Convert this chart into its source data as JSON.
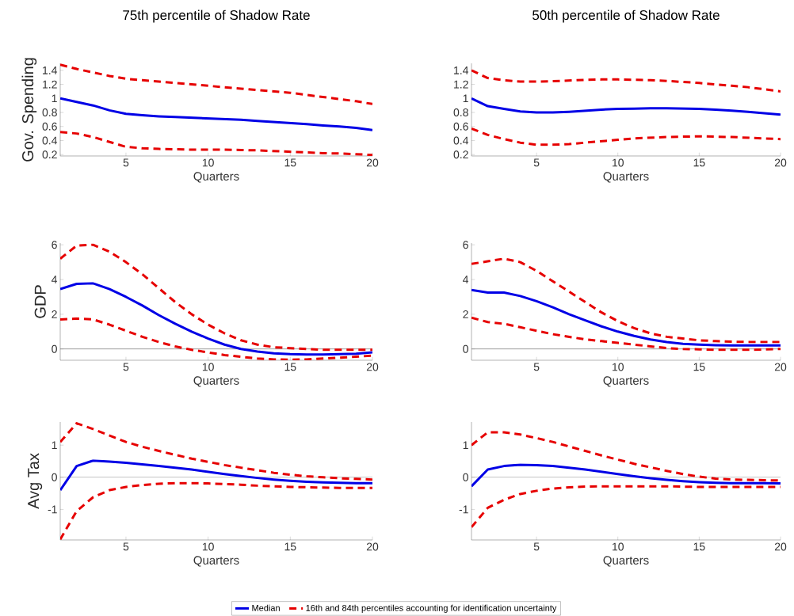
{
  "chart_data": [
    {
      "type": "line",
      "title": "75th percentile of Shadow Rate",
      "xlabel": "Quarters",
      "ylabel": "Gov. Spending",
      "x": [
        1,
        2,
        3,
        4,
        5,
        6,
        7,
        8,
        9,
        10,
        11,
        12,
        13,
        14,
        15,
        16,
        17,
        18,
        19,
        20
      ],
      "xlim": [
        1,
        20
      ],
      "xticks": [
        5,
        10,
        15,
        20
      ],
      "ylim": [
        0.18,
        1.5
      ],
      "yticks": [
        0.2,
        0.4,
        0.6,
        0.8,
        1,
        1.2,
        1.4
      ],
      "series": [
        {
          "color": "#0000e6",
          "line_style": "solid",
          "values": [
            1.0,
            0.95,
            0.9,
            0.83,
            0.78,
            0.76,
            0.745,
            0.735,
            0.725,
            0.715,
            0.705,
            0.695,
            0.68,
            0.665,
            0.65,
            0.635,
            0.615,
            0.6,
            0.58,
            0.55
          ]
        },
        {
          "color": "#e60000",
          "line_style": "dashed",
          "values": [
            1.48,
            1.42,
            1.37,
            1.32,
            1.28,
            1.26,
            1.24,
            1.22,
            1.2,
            1.18,
            1.16,
            1.14,
            1.12,
            1.1,
            1.08,
            1.05,
            1.02,
            0.99,
            0.96,
            0.92
          ]
        },
        {
          "color": "#e60000",
          "line_style": "dashed",
          "values": [
            0.52,
            0.5,
            0.45,
            0.38,
            0.31,
            0.29,
            0.28,
            0.275,
            0.27,
            0.27,
            0.27,
            0.265,
            0.26,
            0.25,
            0.24,
            0.23,
            0.22,
            0.215,
            0.205,
            0.195
          ]
        }
      ]
    },
    {
      "type": "line",
      "title": "50th percentile of Shadow Rate",
      "xlabel": "Quarters",
      "x": [
        1,
        2,
        3,
        4,
        5,
        6,
        7,
        8,
        9,
        10,
        11,
        12,
        13,
        14,
        15,
        16,
        17,
        18,
        19,
        20
      ],
      "xlim": [
        1,
        20
      ],
      "xticks": [
        5,
        10,
        15,
        20
      ],
      "ylim": [
        0.18,
        1.5
      ],
      "yticks": [
        0.2,
        0.4,
        0.6,
        0.8,
        1,
        1.2,
        1.4
      ],
      "series": [
        {
          "color": "#0000e6",
          "line_style": "solid",
          "values": [
            1.0,
            0.89,
            0.85,
            0.815,
            0.8,
            0.8,
            0.81,
            0.825,
            0.84,
            0.85,
            0.855,
            0.86,
            0.86,
            0.855,
            0.85,
            0.84,
            0.825,
            0.81,
            0.79,
            0.77
          ]
        },
        {
          "color": "#e60000",
          "line_style": "dashed",
          "values": [
            1.4,
            1.29,
            1.26,
            1.24,
            1.24,
            1.245,
            1.255,
            1.265,
            1.27,
            1.27,
            1.265,
            1.26,
            1.25,
            1.235,
            1.22,
            1.2,
            1.18,
            1.16,
            1.13,
            1.1
          ]
        },
        {
          "color": "#e60000",
          "line_style": "dashed",
          "values": [
            0.57,
            0.48,
            0.42,
            0.37,
            0.34,
            0.34,
            0.35,
            0.37,
            0.39,
            0.41,
            0.43,
            0.44,
            0.45,
            0.455,
            0.46,
            0.455,
            0.45,
            0.44,
            0.43,
            0.42
          ]
        }
      ]
    },
    {
      "type": "line",
      "xlabel": "Quarters",
      "ylabel": "GDP",
      "x": [
        1,
        2,
        3,
        4,
        5,
        6,
        7,
        8,
        9,
        10,
        11,
        12,
        13,
        14,
        15,
        16,
        17,
        18,
        19,
        20
      ],
      "xlim": [
        1,
        20
      ],
      "xticks": [
        5,
        10,
        15,
        20
      ],
      "ylim": [
        -0.65,
        6.1
      ],
      "yticks": [
        0,
        2,
        4,
        6
      ],
      "ref_lines": [
        {
          "axis": "y",
          "value": 0,
          "color": "#808080"
        }
      ],
      "series": [
        {
          "color": "#0000e6",
          "line_style": "solid",
          "values": [
            3.45,
            3.75,
            3.78,
            3.45,
            3.0,
            2.5,
            1.95,
            1.45,
            1.0,
            0.6,
            0.25,
            0.0,
            -0.15,
            -0.25,
            -0.3,
            -0.32,
            -0.32,
            -0.3,
            -0.27,
            -0.2
          ]
        },
        {
          "color": "#e60000",
          "line_style": "dashed",
          "values": [
            5.2,
            5.95,
            6.0,
            5.6,
            5.0,
            4.3,
            3.5,
            2.7,
            2.0,
            1.4,
            0.9,
            0.5,
            0.25,
            0.1,
            0.05,
            0.0,
            -0.05,
            -0.05,
            -0.05,
            -0.05
          ]
        },
        {
          "color": "#e60000",
          "line_style": "dashed",
          "values": [
            1.7,
            1.75,
            1.7,
            1.4,
            1.05,
            0.7,
            0.4,
            0.15,
            -0.05,
            -0.2,
            -0.35,
            -0.45,
            -0.55,
            -0.6,
            -0.62,
            -0.6,
            -0.55,
            -0.5,
            -0.45,
            -0.38
          ]
        }
      ]
    },
    {
      "type": "line",
      "xlabel": "Quarters",
      "x": [
        1,
        2,
        3,
        4,
        5,
        6,
        7,
        8,
        9,
        10,
        11,
        12,
        13,
        14,
        15,
        16,
        17,
        18,
        19,
        20
      ],
      "xlim": [
        1,
        20
      ],
      "xticks": [
        5,
        10,
        15,
        20
      ],
      "ylim": [
        -0.65,
        6.1
      ],
      "yticks": [
        0,
        2,
        4,
        6
      ],
      "ref_lines": [
        {
          "axis": "y",
          "value": 0,
          "color": "#808080"
        }
      ],
      "series": [
        {
          "color": "#0000e6",
          "line_style": "solid",
          "values": [
            3.4,
            3.25,
            3.25,
            3.05,
            2.75,
            2.4,
            2.0,
            1.65,
            1.3,
            1.0,
            0.75,
            0.55,
            0.4,
            0.3,
            0.25,
            0.22,
            0.2,
            0.2,
            0.2,
            0.2
          ]
        },
        {
          "color": "#e60000",
          "line_style": "dashed",
          "values": [
            4.9,
            5.05,
            5.2,
            5.0,
            4.5,
            3.9,
            3.3,
            2.7,
            2.1,
            1.6,
            1.2,
            0.9,
            0.7,
            0.6,
            0.5,
            0.45,
            0.42,
            0.4,
            0.4,
            0.4
          ]
        },
        {
          "color": "#e60000",
          "line_style": "dashed",
          "values": [
            1.8,
            1.55,
            1.45,
            1.25,
            1.05,
            0.85,
            0.7,
            0.55,
            0.45,
            0.35,
            0.25,
            0.15,
            0.05,
            0.0,
            -0.02,
            -0.05,
            -0.05,
            -0.05,
            -0.03,
            0.0
          ]
        }
      ]
    },
    {
      "type": "line",
      "xlabel": "Quarters",
      "ylabel": "Avg Tax",
      "x": [
        1,
        2,
        3,
        4,
        5,
        6,
        7,
        8,
        9,
        10,
        11,
        12,
        13,
        14,
        15,
        16,
        17,
        18,
        19,
        20
      ],
      "xlim": [
        1,
        20
      ],
      "xticks": [
        5,
        10,
        15,
        20
      ],
      "ylim": [
        -1.95,
        1.72
      ],
      "yticks": [
        -1,
        0,
        1
      ],
      "legend": "bottom",
      "ref_lines": [
        {
          "axis": "y",
          "value": 0,
          "color": "#808080"
        }
      ],
      "series": [
        {
          "name": "Median",
          "color": "#0000e6",
          "line_style": "solid",
          "values": [
            -0.4,
            0.35,
            0.52,
            0.49,
            0.45,
            0.4,
            0.35,
            0.3,
            0.24,
            0.17,
            0.1,
            0.04,
            -0.02,
            -0.07,
            -0.11,
            -0.14,
            -0.16,
            -0.17,
            -0.18,
            -0.18
          ]
        },
        {
          "name": "16th and 84th percentiles accounting for identification uncertainty",
          "color": "#e60000",
          "line_style": "dashed",
          "values": [
            1.1,
            1.68,
            1.5,
            1.3,
            1.1,
            0.95,
            0.82,
            0.7,
            0.58,
            0.48,
            0.38,
            0.3,
            0.22,
            0.14,
            0.08,
            0.03,
            0.0,
            -0.03,
            -0.05,
            -0.07
          ]
        },
        {
          "color": "#e60000",
          "line_style": "dashed",
          "values": [
            -1.93,
            -1.05,
            -0.62,
            -0.4,
            -0.3,
            -0.24,
            -0.2,
            -0.18,
            -0.18,
            -0.19,
            -0.21,
            -0.23,
            -0.26,
            -0.28,
            -0.3,
            -0.31,
            -0.32,
            -0.33,
            -0.33,
            -0.33
          ]
        }
      ]
    },
    {
      "type": "line",
      "xlabel": "Quarters",
      "x": [
        1,
        2,
        3,
        4,
        5,
        6,
        7,
        8,
        9,
        10,
        11,
        12,
        13,
        14,
        15,
        16,
        17,
        18,
        19,
        20
      ],
      "xlim": [
        1,
        20
      ],
      "xticks": [
        5,
        10,
        15,
        20
      ],
      "ylim": [
        -1.95,
        1.72
      ],
      "yticks": [
        -1,
        0,
        1
      ],
      "ref_lines": [
        {
          "axis": "y",
          "value": 0,
          "color": "#808080"
        }
      ],
      "series": [
        {
          "color": "#0000e6",
          "line_style": "solid",
          "values": [
            -0.28,
            0.24,
            0.35,
            0.39,
            0.38,
            0.35,
            0.3,
            0.24,
            0.17,
            0.1,
            0.03,
            -0.03,
            -0.08,
            -0.12,
            -0.15,
            -0.17,
            -0.18,
            -0.18,
            -0.18,
            -0.19
          ]
        },
        {
          "color": "#e60000",
          "line_style": "dashed",
          "values": [
            1.0,
            1.4,
            1.4,
            1.33,
            1.22,
            1.1,
            0.96,
            0.82,
            0.68,
            0.55,
            0.42,
            0.31,
            0.2,
            0.1,
            0.02,
            -0.04,
            -0.07,
            -0.08,
            -0.09,
            -0.1
          ]
        },
        {
          "color": "#e60000",
          "line_style": "dashed",
          "values": [
            -1.55,
            -0.95,
            -0.7,
            -0.52,
            -0.42,
            -0.35,
            -0.31,
            -0.29,
            -0.28,
            -0.28,
            -0.28,
            -0.28,
            -0.28,
            -0.29,
            -0.3,
            -0.3,
            -0.3,
            -0.3,
            -0.3,
            -0.3
          ]
        }
      ]
    }
  ]
}
